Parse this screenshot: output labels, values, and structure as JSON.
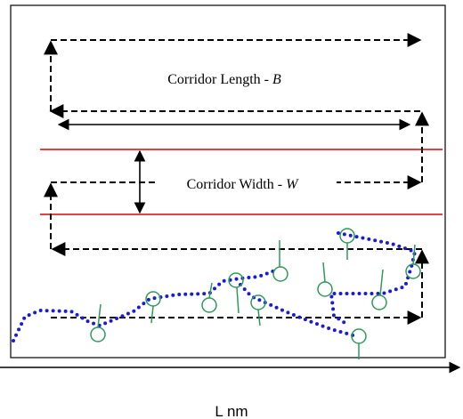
{
  "corridor_length": {
    "text": "Corridor Length - ",
    "symbol": "B"
  },
  "corridor_width": {
    "text": "Corridor Width - ",
    "symbol": "W"
  },
  "axis_label": "L nm"
}
